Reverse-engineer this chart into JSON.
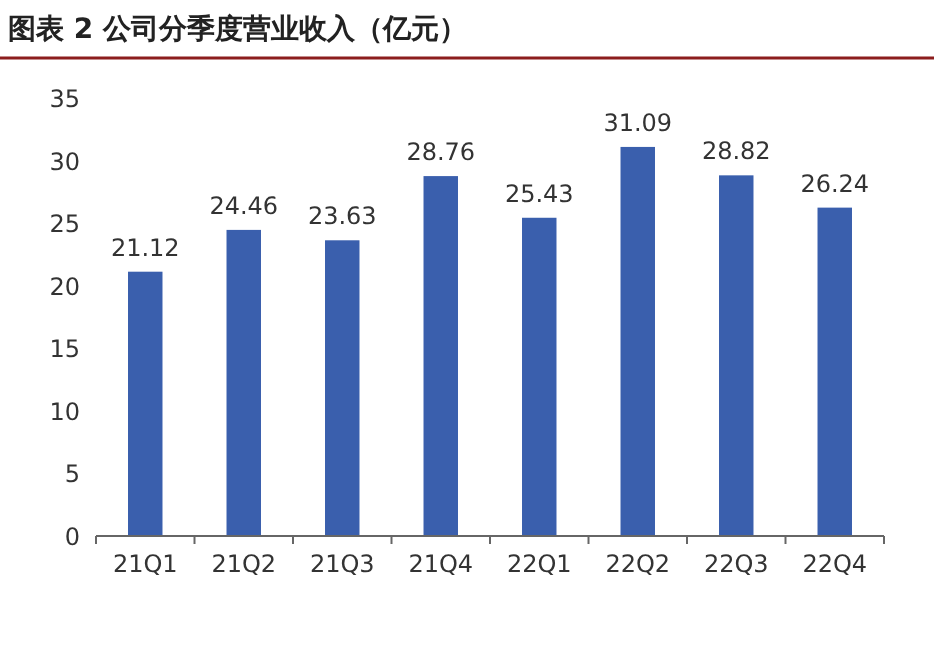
{
  "chart_data": {
    "type": "bar",
    "title": "图表 2 公司分季度营业收入（亿元）",
    "categories": [
      "21Q1",
      "21Q2",
      "21Q3",
      "21Q4",
      "22Q1",
      "22Q2",
      "22Q3",
      "22Q4"
    ],
    "values": [
      21.12,
      24.46,
      23.63,
      28.76,
      25.43,
      31.09,
      28.82,
      26.24
    ],
    "color": "#3a5fad",
    "ylim": [
      0,
      35
    ],
    "yticks": [
      0,
      5,
      10,
      15,
      20,
      25,
      30,
      35
    ],
    "data_labels": true
  }
}
